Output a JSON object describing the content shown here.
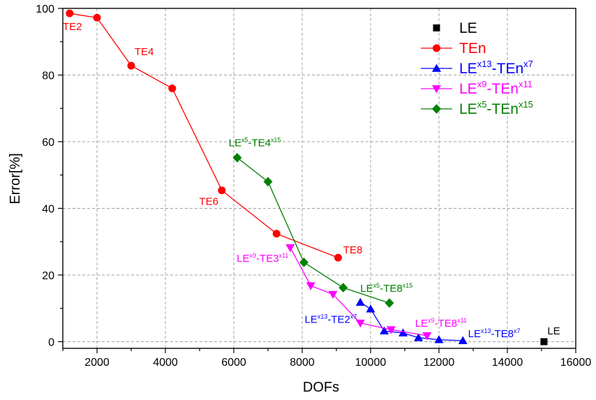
{
  "chart_data": {
    "type": "line",
    "xlabel": "DOFs",
    "ylabel": "Error[%]",
    "xlim": [
      1000,
      16000
    ],
    "ylim": [
      -2,
      100
    ],
    "xticks": [
      2000,
      4000,
      6000,
      8000,
      10000,
      12000,
      14000,
      16000
    ],
    "yticks": [
      0,
      20,
      40,
      60,
      80,
      100
    ],
    "grid": true,
    "legend_position": "top-right",
    "series": [
      {
        "name": "LE",
        "legend_parts": [
          {
            "t": "LE",
            "sup": false
          }
        ],
        "color": "#000000",
        "marker": "square",
        "line": false,
        "points": [
          [
            15070,
            0
          ]
        ]
      },
      {
        "name": "TEn",
        "legend_parts": [
          {
            "t": "TEn",
            "sup": false
          }
        ],
        "color": "#ff0000",
        "marker": "circle",
        "line": true,
        "points": [
          [
            1200,
            98.5
          ],
          [
            2000,
            97.2
          ],
          [
            3000,
            82.8
          ],
          [
            4200,
            76
          ],
          [
            5650,
            45.4
          ],
          [
            7250,
            32.4
          ],
          [
            9050,
            25.2
          ]
        ]
      },
      {
        "name": "LE^x13-TEn^x7",
        "legend_parts": [
          {
            "t": "LE",
            "sup": false
          },
          {
            "t": "x13",
            "sup": true
          },
          {
            "t": "-TEn",
            "sup": false
          },
          {
            "t": "x7",
            "sup": true
          }
        ],
        "color": "#0000ff",
        "marker": "triangle-up",
        "line": true,
        "points": [
          [
            9700,
            11.8
          ],
          [
            10000,
            9.8
          ],
          [
            10400,
            3.2
          ],
          [
            10950,
            2.6
          ],
          [
            11400,
            1.2
          ],
          [
            12000,
            0.6
          ],
          [
            12700,
            0.3
          ]
        ]
      },
      {
        "name": "LE^x9-TEn^x11",
        "legend_parts": [
          {
            "t": "LE",
            "sup": false
          },
          {
            "t": "x9",
            "sup": true
          },
          {
            "t": "-TEn",
            "sup": false
          },
          {
            "t": "x11",
            "sup": true
          }
        ],
        "color": "#ff00ff",
        "marker": "triangle-down",
        "line": true,
        "points": [
          [
            7650,
            28.2
          ],
          [
            8250,
            16.8
          ],
          [
            8900,
            14.2
          ],
          [
            9700,
            5.6
          ],
          [
            10600,
            3.6
          ],
          [
            11650,
            1.8
          ]
        ]
      },
      {
        "name": "LE^x5-TEn^x15",
        "legend_parts": [
          {
            "t": "LE",
            "sup": false
          },
          {
            "t": "x5",
            "sup": true
          },
          {
            "t": "-TEn",
            "sup": false
          },
          {
            "t": "x15",
            "sup": true
          }
        ],
        "color": "#008000",
        "marker": "diamond",
        "line": true,
        "points": [
          [
            6100,
            55.2
          ],
          [
            7000,
            48
          ],
          [
            8050,
            23.8
          ],
          [
            9200,
            16.2
          ],
          [
            10550,
            11.6
          ]
        ]
      }
    ],
    "annotations": [
      {
        "parts": [
          {
            "t": "TE2",
            "sup": false
          }
        ],
        "color": "#ff0000",
        "x": 1000,
        "y": 93.5,
        "anchor": "start"
      },
      {
        "parts": [
          {
            "t": "TE4",
            "sup": false
          }
        ],
        "color": "#ff0000",
        "x": 3100,
        "y": 86,
        "anchor": "start"
      },
      {
        "parts": [
          {
            "t": "TE6",
            "sup": false
          }
        ],
        "color": "#ff0000",
        "x": 5550,
        "y": 41,
        "anchor": "end"
      },
      {
        "parts": [
          {
            "t": "TE8",
            "sup": false
          }
        ],
        "color": "#ff0000",
        "x": 9200,
        "y": 26.5,
        "anchor": "start"
      },
      {
        "parts": [
          {
            "t": "LE",
            "sup": false
          },
          {
            "t": "x5",
            "sup": true
          },
          {
            "t": "-TE4",
            "sup": false
          },
          {
            "t": "x15",
            "sup": true
          }
        ],
        "color": "#008000",
        "x": 5850,
        "y": 58.6,
        "anchor": "start"
      },
      {
        "parts": [
          {
            "t": "LE",
            "sup": false
          },
          {
            "t": "x9",
            "sup": true
          },
          {
            "t": "-TE3",
            "sup": false
          },
          {
            "t": "x11",
            "sup": true
          }
        ],
        "color": "#ff00ff",
        "x": 7600,
        "y": 24,
        "anchor": "end"
      },
      {
        "parts": [
          {
            "t": "LE",
            "sup": false
          },
          {
            "t": "x5",
            "sup": true
          },
          {
            "t": "-TE8",
            "sup": false
          },
          {
            "t": "x15",
            "sup": true
          }
        ],
        "color": "#008000",
        "x": 9700,
        "y": 15,
        "anchor": "start"
      },
      {
        "parts": [
          {
            "t": "LE",
            "sup": false
          },
          {
            "t": "x13",
            "sup": true
          },
          {
            "t": "-TE2",
            "sup": false
          },
          {
            "t": "x7",
            "sup": true
          }
        ],
        "color": "#0000ff",
        "x": 9600,
        "y": 5.6,
        "anchor": "end"
      },
      {
        "parts": [
          {
            "t": "LE",
            "sup": false
          },
          {
            "t": "x9",
            "sup": true
          },
          {
            "t": "-TE8",
            "sup": false
          },
          {
            "t": "x11",
            "sup": true
          }
        ],
        "color": "#ff00ff",
        "x": 11300,
        "y": 4.5,
        "anchor": "start"
      },
      {
        "parts": [
          {
            "t": "LE",
            "sup": false
          },
          {
            "t": "x13",
            "sup": true
          },
          {
            "t": "-TE8",
            "sup": false
          },
          {
            "t": "x7",
            "sup": true
          }
        ],
        "color": "#0000ff",
        "x": 12850,
        "y": 1.3,
        "anchor": "start"
      },
      {
        "parts": [
          {
            "t": "LE",
            "sup": false
          }
        ],
        "color": "#000000",
        "x": 15170,
        "y": 2.2,
        "anchor": "start"
      }
    ]
  }
}
